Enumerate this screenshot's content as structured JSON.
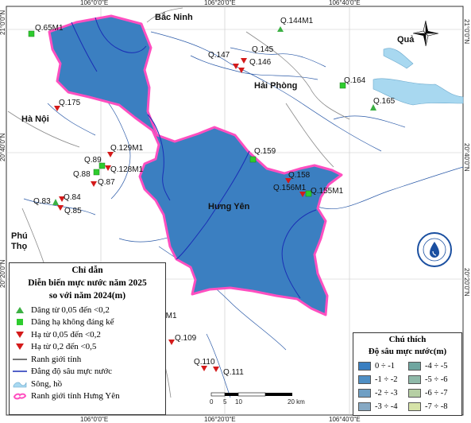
{
  "grid": {
    "top_labels": [
      "106°0'0\"E",
      "106°20'0\"E",
      "106°40'0\"E"
    ],
    "bottom_labels": [
      "106°0'0\"E",
      "106°20'0\"E",
      "106°40'0\"E"
    ],
    "left_labels": [
      "21°0'0\"N",
      "20°40'0\"N",
      "20°20'0\"N"
    ],
    "right_labels": [
      "21°0'0\"N",
      "20°40'0\"N",
      "20°20'0\"N"
    ]
  },
  "places": {
    "bac_ninh": "Bắc Ninh",
    "hai_phong": "Hải Phòng",
    "ha_noi": "Hà Nội",
    "hung_yen": "Hưng Yên",
    "phu_tho_1": "Phú",
    "phu_tho_2": "Thọ",
    "qua": "Quả"
  },
  "stations": [
    {
      "id": "Q.65M1",
      "status": "rise_insignificant"
    },
    {
      "id": "Q.144M1",
      "status": "rise"
    },
    {
      "id": "Q.147",
      "status": "fall_small"
    },
    {
      "id": "Q.145",
      "status": "fall_small"
    },
    {
      "id": "Q.146",
      "status": "fall_small"
    },
    {
      "id": "Q.164",
      "status": "rise_insignificant"
    },
    {
      "id": "Q.165",
      "status": "rise"
    },
    {
      "id": "Q.175",
      "status": "fall_small"
    },
    {
      "id": "Q.129M1",
      "status": "fall_small"
    },
    {
      "id": "Q.89",
      "status": "rise_insignificant"
    },
    {
      "id": "Q.88",
      "status": "rise_insignificant"
    },
    {
      "id": "Q.128M1",
      "status": "fall_small"
    },
    {
      "id": "Q.87",
      "status": "fall_small"
    },
    {
      "id": "Q.159",
      "status": "rise_insignificant"
    },
    {
      "id": "Q.158",
      "status": "fall_small"
    },
    {
      "id": "Q.156M1",
      "status": "fall_small"
    },
    {
      "id": "Q.155M1",
      "status": "rise_insignificant"
    },
    {
      "id": "Q.83",
      "status": "rise"
    },
    {
      "id": "Q.84",
      "status": "fall_small"
    },
    {
      "id": "Q.85",
      "status": "fall_small"
    },
    {
      "id": "108M1",
      "status": "none"
    },
    {
      "id": "Q.109",
      "status": "fall_small"
    },
    {
      "id": "Q.110",
      "status": "fall_small"
    },
    {
      "id": "Q.111",
      "status": "fall_small"
    }
  ],
  "scale_bar": {
    "ticks": [
      "0",
      "5",
      "10",
      "20 km"
    ]
  },
  "legend_left": {
    "title1": "Chỉ dẫn",
    "title2": "Diễn biến mực nước năm 2025",
    "title3": "so với năm 2024(m)",
    "items": [
      {
        "label": "Dâng từ 0,05 đến <0,2",
        "symbol": "triangle-up",
        "color": "#3cb043"
      },
      {
        "label": "Dâng hạ không đáng kể",
        "symbol": "square",
        "color": "#2ecc2e"
      },
      {
        "label": "Hạ từ 0,05 đến <0,2",
        "symbol": "triangle-down",
        "color": "#d41a1a"
      },
      {
        "label": "Hạ từ 0,2 đến <0,5",
        "symbol": "triangle-down",
        "color": "#d41a1a"
      },
      {
        "label": "Ranh giới tỉnh",
        "symbol": "line-gray",
        "color": "#777777"
      },
      {
        "label": "Đẳng độ sâu mực nước",
        "symbol": "line-blue",
        "color": "#1a2fb5"
      },
      {
        "label": "Sông, hồ",
        "symbol": "water",
        "color": "#a8d8f0"
      },
      {
        "label": "Ranh giới tỉnh Hưng Yên",
        "symbol": "pink-outline",
        "color": "#ff4fc0"
      }
    ]
  },
  "legend_right": {
    "title1": "Chú thích",
    "title2": "Độ sâu mực nước(m)",
    "items": [
      {
        "label": "0 ÷ -1",
        "color": "#3a7fc1"
      },
      {
        "label": "-4 ÷ -5",
        "color": "#6fa6a0"
      },
      {
        "label": "-1 ÷ -2",
        "color": "#4f8fc4"
      },
      {
        "label": "-5 ÷ -6",
        "color": "#8fb9a9"
      },
      {
        "label": "-2 ÷ -3",
        "color": "#6f9fc4"
      },
      {
        "label": "-6 ÷ -7",
        "color": "#b6cfa4"
      },
      {
        "label": "-3 ÷ -4",
        "color": "#86a9c4"
      },
      {
        "label": "-7 ÷ -8",
        "color": "#d6e3a8"
      }
    ]
  },
  "colors": {
    "province_fill": "#3b7fc1",
    "province_fill_shallow": "#4a88c6",
    "hung_yen_border": "#ff4fc0",
    "water": "#a8d8f0",
    "contour": "#1a2fb5",
    "boundary": "#8a8a8a"
  }
}
